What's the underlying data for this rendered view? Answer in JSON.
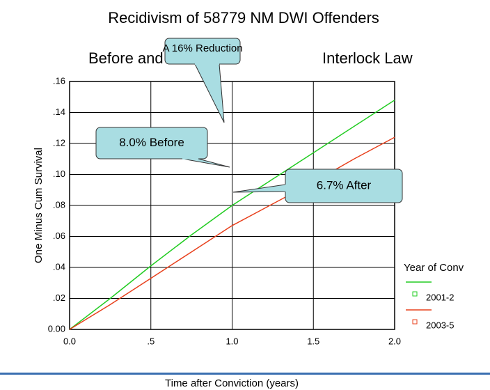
{
  "chart_data": {
    "type": "line",
    "title": "Recidivism of 58779 NM DWI Offenders",
    "subtitle": [
      "Before and After",
      "Interlock Law"
    ],
    "x_label": "Time after Conviction (years)",
    "y_label": "One Minus Cum Survival",
    "x": [
      0,
      0.25,
      0.5,
      0.75,
      1.0,
      1.25,
      1.5,
      1.75,
      2.0
    ],
    "series": [
      {
        "name": "2001-2",
        "color": "#22cc22",
        "values": [
          0,
          0.02,
          0.041,
          0.061,
          0.08,
          0.097,
          0.114,
          0.131,
          0.148
        ]
      },
      {
        "name": "2003-5",
        "color": "#e8401c",
        "values": [
          0,
          0.016,
          0.033,
          0.05,
          0.067,
          0.081,
          0.095,
          0.11,
          0.124
        ]
      }
    ],
    "legend_title": "Year of Conv",
    "legend": "right",
    "xlim": [
      0,
      2.0
    ],
    "xticks": [
      {
        "value": 0,
        "label": "0.0"
      },
      {
        "value": 0.5,
        "label": ".5"
      },
      {
        "value": 1.0,
        "label": "1.0"
      },
      1.5,
      {
        "value": 2.0,
        "label": "2.0"
      }
    ],
    "ylim": [
      0,
      0.16
    ],
    "yticks": [
      {
        "value": 0,
        "label": "0.00"
      },
      {
        "value": 0.02,
        "label": ".02"
      },
      {
        "value": 0.04,
        "label": ".04"
      },
      {
        "value": 0.06,
        "label": ".06"
      },
      {
        "value": 0.08,
        "label": ".08"
      },
      {
        "value": 0.1,
        "label": ".10"
      },
      {
        "value": 0.12,
        "label": ".12"
      },
      {
        "value": 0.14,
        "label": ".14"
      },
      {
        "value": 0.16,
        "label": ".16"
      }
    ],
    "grid": true,
    "annotations": [
      {
        "text": "A 16% Reduction"
      },
      {
        "text": "8.0% Before"
      },
      {
        "text": "6.7% After"
      }
    ]
  }
}
